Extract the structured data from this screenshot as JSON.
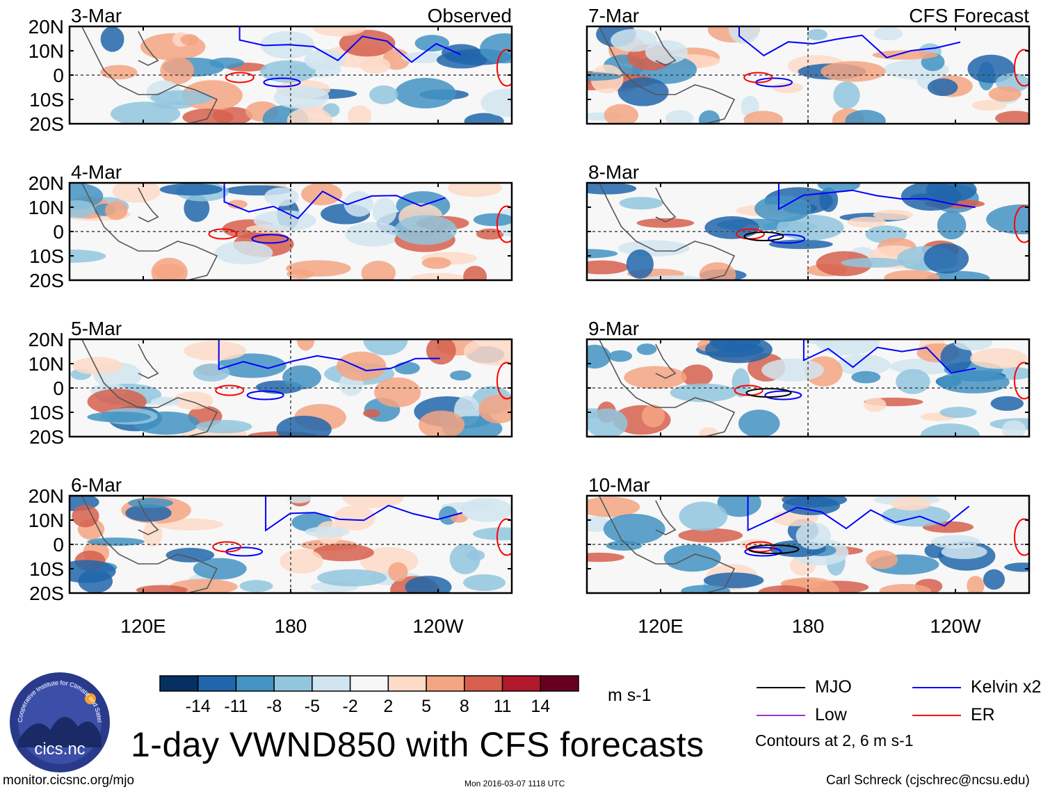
{
  "chart_data": {
    "type": "map_panels",
    "variable": "VWND850",
    "title": "1-day VWND850 with CFS forecasts",
    "units": "m s-1",
    "columns": [
      {
        "header": "Observed",
        "panels": [
          "3-Mar",
          "4-Mar",
          "5-Mar",
          "6-Mar"
        ]
      },
      {
        "header": "CFS Forecast",
        "panels": [
          "7-Mar",
          "8-Mar",
          "9-Mar",
          "10-Mar"
        ]
      }
    ],
    "lat_ticks": [
      "20N",
      "10N",
      "0",
      "10S",
      "20S"
    ],
    "lat_values": [
      20,
      10,
      0,
      -10,
      -20
    ],
    "lon_ticks": [
      "120E",
      "180",
      "120W"
    ],
    "lon_values": [
      120,
      180,
      240
    ],
    "lon_range": [
      90,
      270
    ],
    "lat_range": [
      -20,
      20
    ],
    "colorbar": {
      "labels": [
        "-14",
        "-11",
        "-8",
        "-5",
        "-2",
        "2",
        "5",
        "8",
        "11",
        "14"
      ],
      "colors": [
        "#053061",
        "#2166ac",
        "#4393c3",
        "#92c5de",
        "#d1e5f0",
        "#f7f7f7",
        "#fddbc7",
        "#f4a582",
        "#d6604d",
        "#b2182b",
        "#67001f"
      ]
    },
    "legend": [
      {
        "label": "MJO",
        "color": "#000000"
      },
      {
        "label": "Kelvin x2",
        "color": "#0000ff"
      },
      {
        "label": "Low",
        "color": "#9933cc"
      },
      {
        "label": "ER",
        "color": "#ff0000"
      }
    ],
    "contour_note": "Contours at 2, 6 m s-1"
  },
  "logo_text": "cics.nc",
  "logo_ring_text": "Cooperative Institute for Climate and Satellites",
  "footer": {
    "url": "monitor.cicsnc.org/mjo",
    "timestamp": "Mon 2016-03-07 1118 UTC",
    "credit": "Carl Schreck (cjschrec@ncsu.edu)"
  }
}
